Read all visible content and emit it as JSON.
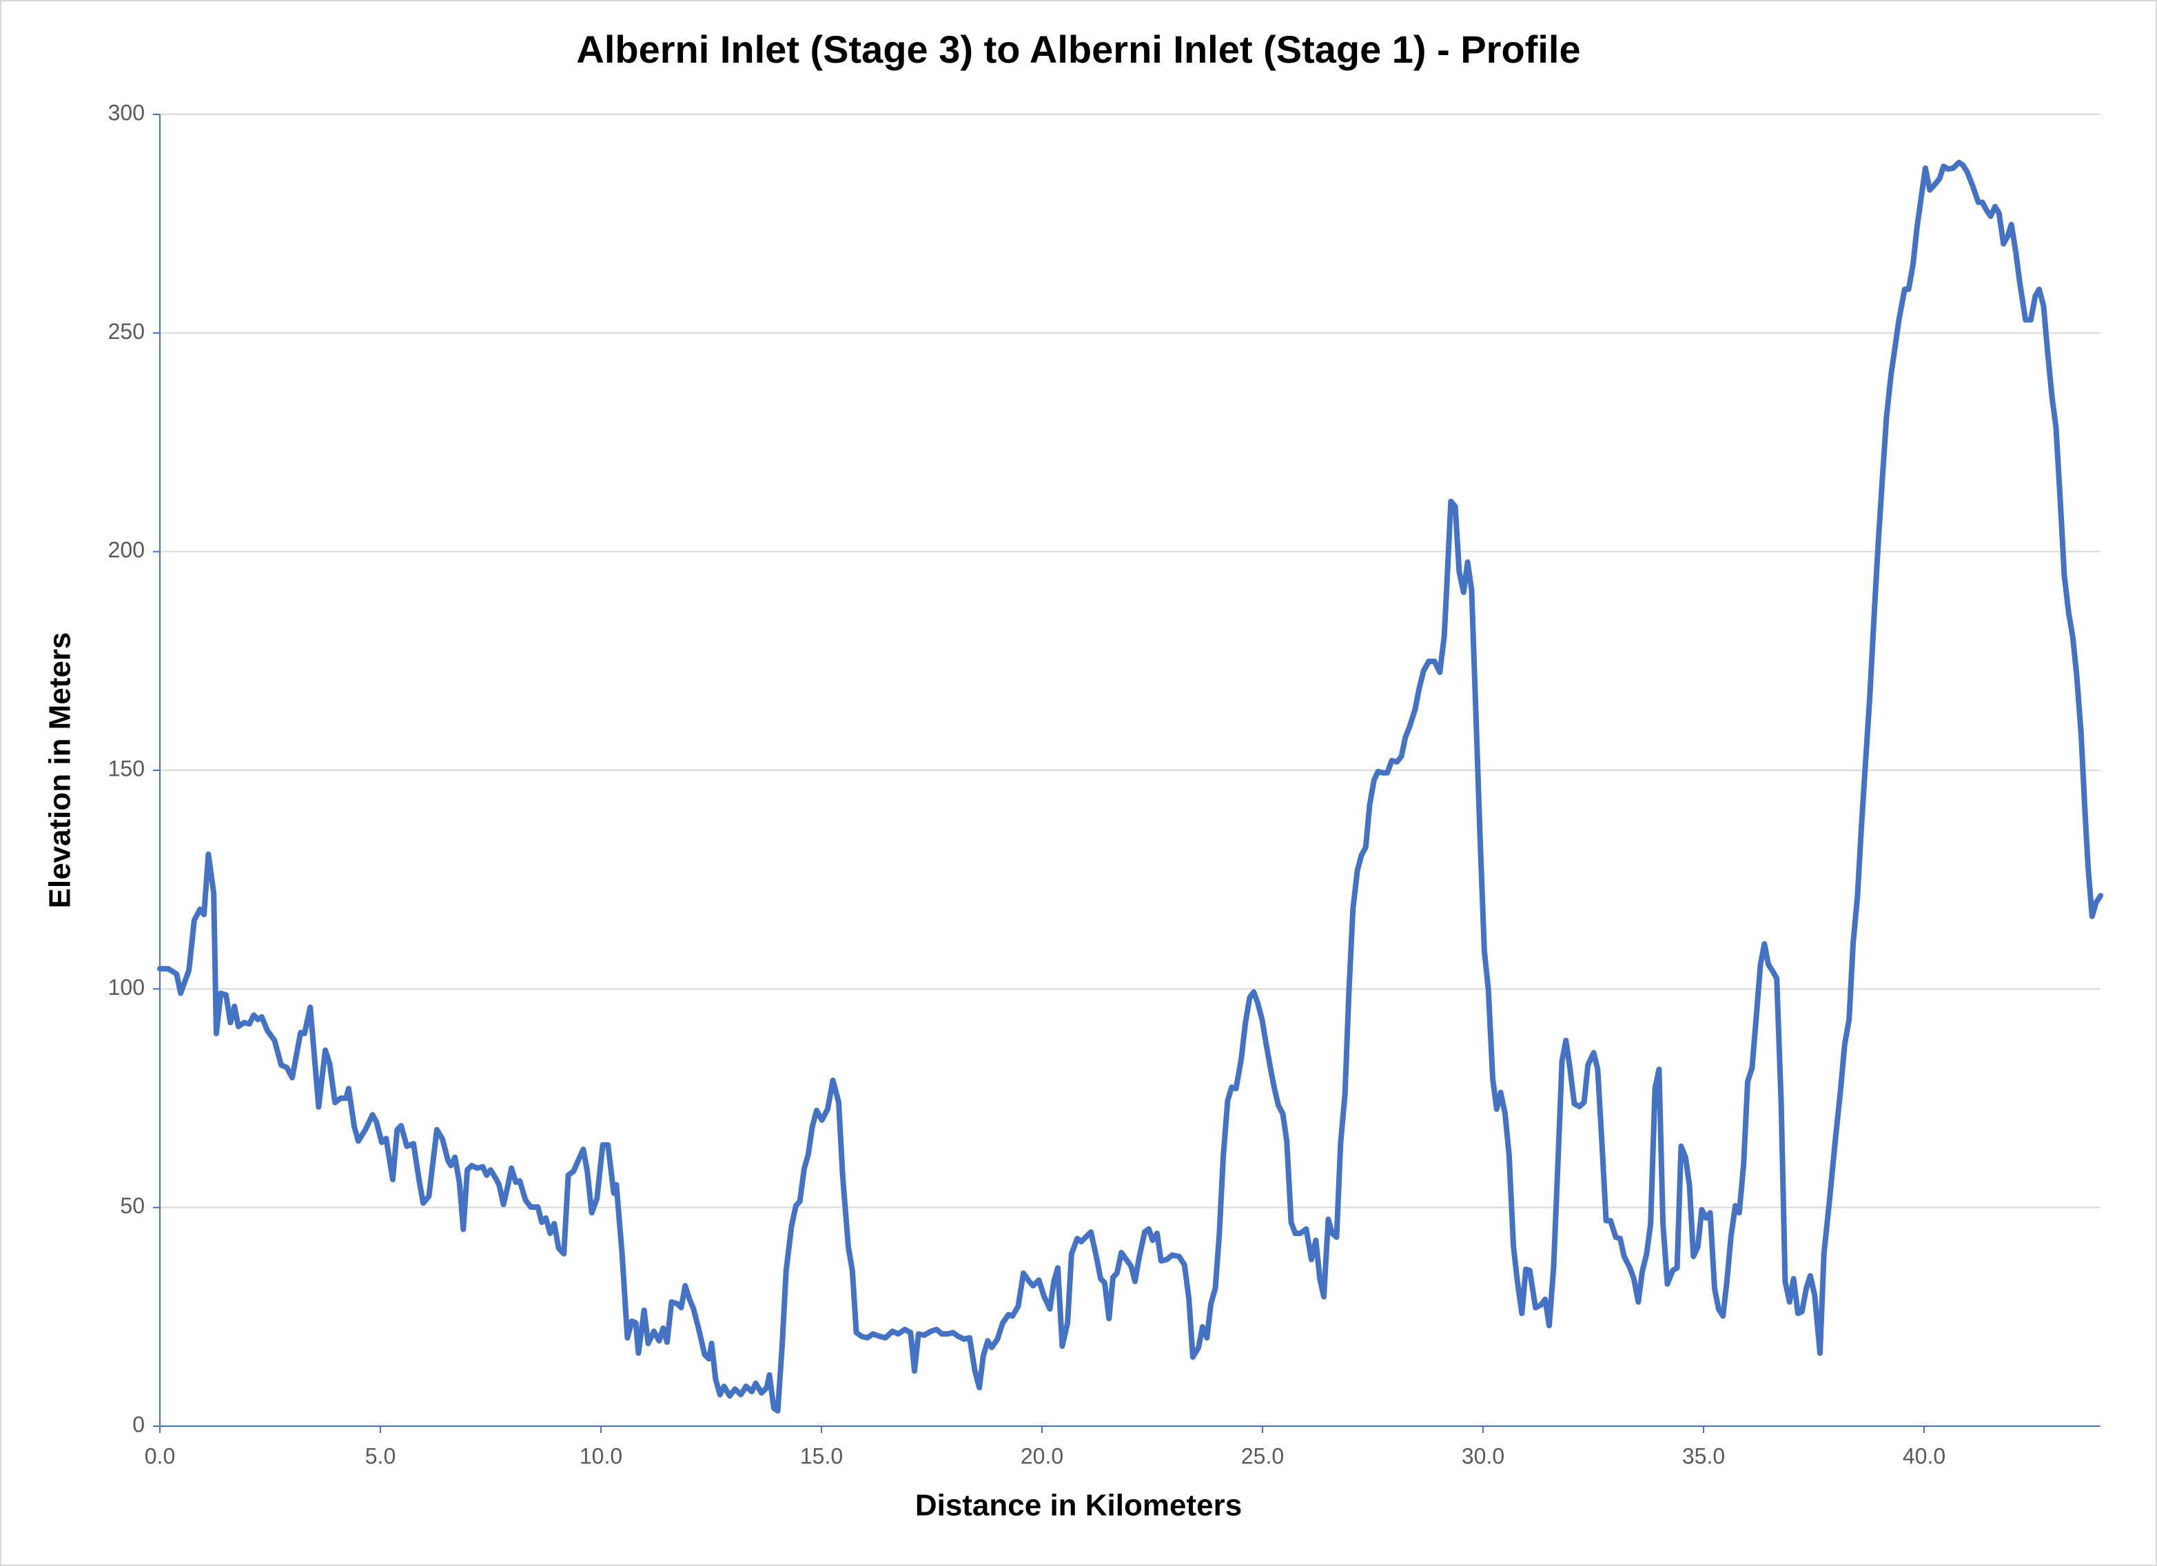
{
  "chart_data": {
    "type": "line",
    "title": "Alberni Inlet (Stage 3) to Alberni Inlet (Stage 1) - Profile",
    "xlabel": "Distance in Kilometers",
    "ylabel": "Elevation in Meters",
    "color": "#4472c4",
    "grid": true,
    "xlim": [
      0,
      44
    ],
    "ylim": [
      0,
      300
    ],
    "yticks": [
      0,
      50,
      100,
      150,
      200,
      250,
      300
    ],
    "xticks": [
      {
        "value": 0,
        "label": "0.0"
      },
      {
        "value": 5,
        "label": "5.0"
      },
      {
        "value": 10,
        "label": "10.0"
      },
      {
        "value": 15,
        "label": "15.0"
      },
      {
        "value": 20,
        "label": "20.0"
      },
      {
        "value": 25,
        "label": "25.0"
      },
      {
        "value": 30,
        "label": "30.0"
      },
      {
        "value": 35,
        "label": "35.0"
      },
      {
        "value": 40,
        "label": "40.0"
      }
    ],
    "x": [
      0,
      0.19,
      0.38,
      0.47,
      0.66,
      0.78,
      0.91,
      1.0,
      1.1,
      1.22,
      1.28,
      1.38,
      1.5,
      1.6,
      1.69,
      1.78,
      1.91,
      2.03,
      2.13,
      2.22,
      2.31,
      2.44,
      2.6,
      2.75,
      2.88,
      3.0,
      3.19,
      3.28,
      3.41,
      3.6,
      3.75,
      3.85,
      3.97,
      4.1,
      4.22,
      4.28,
      4.41,
      4.5,
      4.66,
      4.82,
      4.91,
      5.03,
      5.13,
      5.28,
      5.38,
      5.47,
      5.6,
      5.75,
      5.88,
      5.97,
      6.1,
      6.28,
      6.41,
      6.53,
      6.6,
      6.69,
      6.79,
      6.88,
      6.97,
      7.07,
      7.19,
      7.32,
      7.41,
      7.5,
      7.63,
      7.69,
      7.79,
      7.88,
      7.97,
      8.07,
      8.16,
      8.29,
      8.41,
      8.57,
      8.66,
      8.75,
      8.85,
      8.94,
      9.04,
      9.16,
      9.26,
      9.38,
      9.5,
      9.6,
      9.69,
      9.79,
      9.91,
      10.04,
      10.16,
      10.29,
      10.35,
      10.48,
      10.6,
      10.7,
      10.79,
      10.85,
      10.98,
      11.07,
      11.2,
      11.32,
      11.41,
      11.5,
      11.6,
      11.73,
      11.82,
      11.91,
      12.01,
      12.1,
      12.23,
      12.35,
      12.45,
      12.51,
      12.6,
      12.7,
      12.79,
      12.92,
      13.04,
      13.17,
      13.29,
      13.42,
      13.51,
      13.64,
      13.76,
      13.82,
      13.92,
      14.01,
      14.11,
      14.2,
      14.32,
      14.42,
      14.51,
      14.61,
      14.7,
      14.79,
      14.89,
      15.01,
      15.14,
      15.26,
      15.39,
      15.48,
      15.61,
      15.7,
      15.79,
      15.92,
      16.04,
      16.17,
      16.33,
      16.45,
      16.61,
      16.74,
      16.89,
      17.02,
      17.11,
      17.2,
      17.33,
      17.48,
      17.61,
      17.73,
      17.86,
      17.98,
      18.11,
      18.23,
      18.36,
      18.48,
      18.58,
      18.67,
      18.77,
      18.86,
      18.99,
      19.11,
      19.24,
      19.33,
      19.46,
      19.58,
      19.71,
      19.8,
      19.93,
      20.05,
      20.18,
      20.27,
      20.36,
      20.46,
      20.58,
      20.67,
      20.8,
      20.89,
      21.02,
      21.11,
      21.24,
      21.33,
      21.42,
      21.52,
      21.61,
      21.7,
      21.8,
      21.89,
      22.02,
      22.11,
      22.2,
      22.33,
      22.42,
      22.51,
      22.61,
      22.7,
      22.83,
      22.95,
      23.11,
      23.23,
      23.33,
      23.42,
      23.55,
      23.64,
      23.74,
      23.83,
      23.93,
      24.02,
      24.11,
      24.21,
      24.3,
      24.4,
      24.52,
      24.61,
      24.71,
      24.8,
      24.89,
      24.99,
      25.08,
      25.18,
      25.27,
      25.36,
      25.46,
      25.55,
      25.65,
      25.74,
      25.86,
      25.99,
      26.11,
      26.21,
      26.3,
      26.39,
      26.49,
      26.58,
      26.68,
      26.77,
      26.87,
      26.96,
      27.05,
      27.15,
      27.24,
      27.34,
      27.43,
      27.53,
      27.62,
      27.74,
      27.83,
      27.93,
      28.05,
      28.15,
      28.24,
      28.33,
      28.46,
      28.55,
      28.65,
      28.77,
      28.9,
      29.02,
      29.12,
      29.18,
      29.27,
      29.37,
      29.46,
      29.56,
      29.65,
      29.74,
      29.84,
      29.93,
      30.03,
      30.12,
      30.22,
      30.31,
      30.4,
      30.5,
      30.59,
      30.69,
      30.78,
      30.88,
      30.97,
      31.06,
      31.19,
      31.31,
      31.41,
      31.5,
      31.6,
      31.69,
      31.79,
      31.88,
      31.97,
      32.07,
      32.19,
      32.29,
      32.38,
      32.51,
      32.6,
      32.7,
      32.79,
      32.89,
      33.01,
      33.11,
      33.2,
      33.33,
      33.42,
      33.52,
      33.61,
      33.71,
      33.8,
      33.9,
      33.99,
      34.08,
      34.18,
      34.3,
      34.4,
      34.49,
      34.59,
      34.68,
      34.77,
      34.87,
      34.96,
      35.06,
      35.15,
      35.25,
      35.34,
      35.44,
      35.53,
      35.62,
      35.72,
      35.81,
      35.91,
      36.0,
      36.1,
      36.19,
      36.29,
      36.38,
      36.47,
      36.57,
      36.66,
      36.76,
      36.85,
      36.95,
      37.04,
      37.14,
      37.23,
      37.33,
      37.42,
      37.52,
      37.64,
      37.73,
      37.86,
      37.98,
      38.11,
      38.2,
      38.3,
      38.39,
      38.49,
      38.58,
      38.68,
      38.77,
      38.87,
      38.96,
      39.06,
      39.15,
      39.25,
      39.34,
      39.43,
      39.56,
      39.65,
      39.75,
      39.84,
      39.94,
      40.03,
      40.13,
      40.22,
      40.35,
      40.44,
      40.54,
      40.66,
      40.79,
      40.88,
      40.98,
      41.1,
      41.23,
      41.32,
      41.42,
      41.51,
      41.61,
      41.7,
      41.8,
      41.89,
      41.98,
      42.08,
      42.17,
      42.3,
      42.42,
      42.52,
      42.61,
      42.71,
      42.8,
      42.9,
      42.99,
      43.09,
      43.18,
      43.28,
      43.37,
      43.46,
      43.56,
      43.65,
      43.72,
      43.81,
      43.9,
      44.0
    ],
    "values": [
      104.6,
      104.6,
      103.4,
      99,
      104.3,
      115.7,
      118.2,
      117,
      130.8,
      122,
      89.8,
      99,
      98.6,
      92.3,
      96,
      91.4,
      92.3,
      92,
      94,
      93,
      93.6,
      90.4,
      88.2,
      82.6,
      82,
      79.7,
      90,
      89.8,
      95.8,
      73,
      86,
      82.9,
      74,
      75,
      75,
      77.2,
      68.4,
      65.2,
      67.8,
      71.2,
      69.6,
      64.9,
      65.8,
      56.4,
      67.8,
      68.7,
      64,
      64.6,
      56.1,
      51,
      52.6,
      67.8,
      65.6,
      60.8,
      59.6,
      61.5,
      55.8,
      45,
      58.6,
      59.6,
      59,
      59.3,
      57.4,
      58.6,
      56.4,
      55.2,
      50.7,
      54.5,
      59,
      55.8,
      56.1,
      51.7,
      50.1,
      50.1,
      46.6,
      47.6,
      44.1,
      46.3,
      40.7,
      39.4,
      57.4,
      58.3,
      61.1,
      63.3,
      58.3,
      48.8,
      52,
      64.3,
      64.3,
      53.3,
      55.2,
      39.4,
      20.2,
      24,
      23.6,
      16.7,
      26.5,
      18.9,
      21.7,
      19.5,
      22.4,
      19.2,
      28.4,
      28,
      27.1,
      32.1,
      29,
      26.8,
      21.7,
      16.4,
      15.4,
      18.9,
      10.7,
      7.2,
      9.1,
      6.9,
      8.5,
      7.2,
      9.1,
      7.9,
      9.8,
      7.6,
      8.8,
      11.7,
      4.1,
      3.5,
      18.6,
      35.6,
      45.7,
      50.4,
      51.4,
      58.9,
      62.1,
      68.4,
      72.2,
      70,
      72.5,
      79.1,
      74.1,
      57.4,
      41,
      35.6,
      21.4,
      20.5,
      20.2,
      21.1,
      20.5,
      20.2,
      21.7,
      21.1,
      22.1,
      21.4,
      12.6,
      21.1,
      20.8,
      21.7,
      22.1,
      21.1,
      21.1,
      21.4,
      20.5,
      19.9,
      20.2,
      12.6,
      8.8,
      16.1,
      19.5,
      18,
      19.9,
      23.6,
      25.5,
      25.2,
      27.4,
      35,
      33.1,
      32.1,
      33.4,
      29.6,
      26.8,
      33.1,
      36.2,
      18.3,
      23.6,
      39.4,
      42.9,
      42.2,
      43.5,
      44.4,
      38.4,
      33.7,
      32.8,
      24.6,
      34,
      35,
      39.7,
      38.4,
      36.6,
      33.1,
      38.4,
      44.4,
      45.1,
      42.5,
      44.1,
      37.8,
      38.1,
      39.1,
      38.8,
      36.9,
      29.3,
      15.8,
      18,
      22.7,
      20.2,
      28,
      31.5,
      43.8,
      61.5,
      74.4,
      77.5,
      77.2,
      84.1,
      92,
      98,
      99.3,
      96.8,
      93,
      87.6,
      81.9,
      77.2,
      73.4,
      71.5,
      65.2,
      46.6,
      44.1,
      44.1,
      45.1,
      38.1,
      42.5,
      33.7,
      29.6,
      47.3,
      44.1,
      43.2,
      64.6,
      76,
      99.3,
      118.2,
      127,
      130.5,
      132.4,
      142.1,
      147.8,
      149.7,
      149.4,
      149.4,
      152.2,
      151.9,
      153.2,
      157.6,
      159.8,
      163.9,
      168.6,
      172.7,
      174.9,
      174.9,
      172.4,
      180.6,
      192.3,
      211.5,
      210.3,
      195.4,
      190.7,
      197.6,
      191.3,
      162.3,
      135.5,
      108.7,
      99.9,
      79.4,
      72.5,
      76.3,
      71.5,
      62.1,
      41,
      33.1,
      25.8,
      35.9,
      35.6,
      27.1,
      27.7,
      29,
      23,
      36.2,
      58.3,
      83.5,
      88.2,
      81.9,
      73.7,
      73.1,
      74.1,
      82.6,
      85.4,
      81.6,
      64,
      47,
      47,
      43.2,
      42.9,
      38.8,
      36.2,
      33.7,
      28.4,
      35.3,
      39.4,
      46.3,
      77.2,
      81.6,
      46.3,
      32.5,
      35.6,
      36.2,
      64,
      61.5,
      55.2,
      38.8,
      41,
      49.5,
      47.6,
      48.8,
      31.5,
      26.8,
      25.2,
      33.1,
      43.2,
      50.4,
      48.8,
      59.9,
      78.8,
      81.9,
      93,
      105.6,
      110.3,
      105.6,
      104,
      102.4,
      74.1,
      33.1,
      28.4,
      33.7,
      25.8,
      26.2,
      31.5,
      34.4,
      29.9,
      16.7,
      39.4,
      52,
      64.6,
      77.2,
      87.3,
      93,
      110.3,
      121.3,
      137.1,
      152.9,
      167,
      185.9,
      201.7,
      217.4,
      231,
      240.4,
      246.7,
      253,
      260,
      260,
      265.7,
      274.2,
      281.4,
      287.7,
      282.7,
      283.7,
      285.3,
      288.1,
      287.5,
      287.7,
      289,
      288.4,
      286.8,
      283.7,
      279.9,
      279.9,
      278,
      276.7,
      278.9,
      277.4,
      270.4,
      272,
      274.8,
      268.5,
      261.5,
      253,
      253,
      258.4,
      260,
      256.2,
      245.8,
      235.4,
      228.5,
      211.2,
      194.5,
      185.9,
      180.6,
      171.8,
      158.5,
      140.2,
      127.6,
      116.6,
      119.7,
      121.3
    ]
  }
}
